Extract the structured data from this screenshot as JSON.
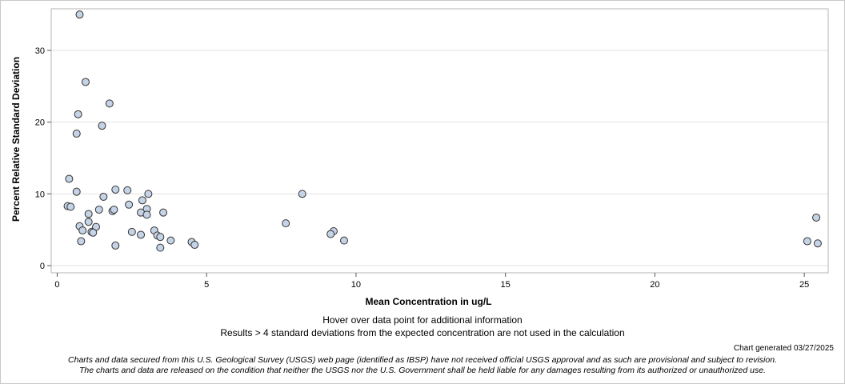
{
  "chart_data": {
    "type": "scatter",
    "xlabel": "Mean Concentration in ug/L",
    "ylabel": "Percent Relative Standard Deviation",
    "xlim": [
      -0.2,
      25.8
    ],
    "ylim": [
      -1,
      35.8
    ],
    "x_ticks": [
      "0",
      "5",
      "10",
      "15",
      "20",
      "25"
    ],
    "x_tick_values": [
      0,
      5,
      10,
      15,
      20,
      25
    ],
    "y_ticks": [
      "0",
      "10",
      "20",
      "30"
    ],
    "y_tick_values": [
      0,
      10,
      20,
      30
    ],
    "grid": "horizontal",
    "marker_fill": "#c5d3e6",
    "marker_stroke": "#333333",
    "gridline_color": "#e2e2e2",
    "series": [
      {
        "x": [
          0.75,
          0.95,
          1.75,
          0.7,
          1.5,
          0.65,
          0.4,
          0.65,
          1.95,
          2.35,
          3.05,
          8.2,
          0.35,
          0.45,
          2.4,
          2.85,
          1.55,
          1.4,
          1.85,
          1.9,
          3.0,
          2.8,
          3.55,
          3.0,
          1.05,
          7.65,
          1.05,
          0.75,
          1.3,
          25.4,
          0.85,
          1.15,
          1.2,
          2.5,
          3.25,
          9.25,
          9.15,
          2.8,
          3.35,
          3.45,
          0.8,
          3.8,
          9.6,
          4.5,
          4.6,
          1.95,
          3.45,
          25.1,
          25.45
        ],
        "y": [
          35.0,
          25.6,
          22.6,
          21.1,
          19.5,
          18.4,
          12.1,
          10.3,
          10.6,
          10.5,
          10.0,
          10.0,
          8.3,
          8.2,
          8.5,
          9.1,
          9.6,
          7.8,
          7.6,
          7.8,
          7.9,
          7.4,
          7.4,
          7.1,
          7.2,
          5.9,
          6.1,
          5.5,
          5.4,
          6.7,
          4.9,
          4.7,
          4.6,
          4.7,
          4.9,
          4.8,
          4.4,
          4.3,
          4.2,
          4.0,
          3.4,
          3.5,
          3.5,
          3.3,
          2.9,
          2.8,
          2.5,
          3.4,
          3.1
        ]
      }
    ]
  },
  "notes": {
    "hover": "Hover over data point for additional information",
    "results": "Results > 4 standard deviations from the expected concentration are not used in the calculation"
  },
  "generated": "Chart generated 03/27/2025",
  "disclaimer": {
    "line1": "Charts and data secured from this U.S. Geological Survey (USGS) web page (identified as IBSP) have not received official USGS approval and as such are provisional and subject to revision.",
    "line2": "The charts and data are released on the condition that neither the USGS nor the U.S. Government shall be held liable for any damages resulting from its authorized or unauthorized use."
  }
}
